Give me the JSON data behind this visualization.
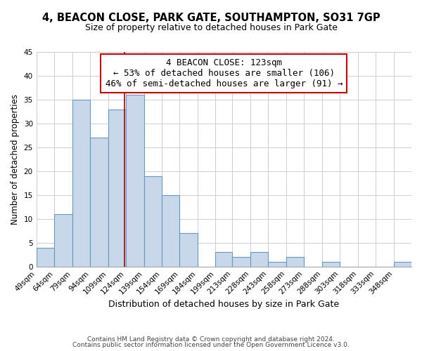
{
  "title1": "4, BEACON CLOSE, PARK GATE, SOUTHAMPTON, SO31 7GP",
  "title2": "Size of property relative to detached houses in Park Gate",
  "xlabel": "Distribution of detached houses by size in Park Gate",
  "ylabel": "Number of detached properties",
  "bin_labels": [
    "49sqm",
    "64sqm",
    "79sqm",
    "94sqm",
    "109sqm",
    "124sqm",
    "139sqm",
    "154sqm",
    "169sqm",
    "184sqm",
    "199sqm",
    "213sqm",
    "228sqm",
    "243sqm",
    "258sqm",
    "273sqm",
    "288sqm",
    "303sqm",
    "318sqm",
    "333sqm",
    "348sqm"
  ],
  "bin_edges": [
    49,
    64,
    79,
    94,
    109,
    124,
    139,
    154,
    169,
    184,
    199,
    213,
    228,
    243,
    258,
    273,
    288,
    303,
    318,
    333,
    348,
    363
  ],
  "counts": [
    4,
    11,
    35,
    27,
    33,
    36,
    19,
    15,
    7,
    0,
    3,
    2,
    3,
    1,
    2,
    0,
    1,
    0,
    0,
    0,
    1
  ],
  "bar_color": "#c8d8ea",
  "bar_edgecolor": "#6699bb",
  "vline_x": 123,
  "vline_color": "#aa0000",
  "annotation_line1": "4 BEACON CLOSE: 123sqm",
  "annotation_line2": "← 53% of detached houses are smaller (106)",
  "annotation_line3": "46% of semi-detached houses are larger (91) →",
  "annotation_boxcolor": "#ffffff",
  "annotation_boxedgecolor": "#cc0000",
  "ylim": [
    0,
    45
  ],
  "yticks": [
    0,
    5,
    10,
    15,
    20,
    25,
    30,
    35,
    40,
    45
  ],
  "background_color": "#ffffff",
  "grid_color": "#ccccdd",
  "footer1": "Contains HM Land Registry data © Crown copyright and database right 2024.",
  "footer2": "Contains public sector information licensed under the Open Government Licence v3.0.",
  "title1_fontsize": 10.5,
  "title2_fontsize": 9,
  "xlabel_fontsize": 9,
  "ylabel_fontsize": 8.5,
  "tick_fontsize": 7.5,
  "annotation_fontsize": 9,
  "footer_fontsize": 6.5
}
